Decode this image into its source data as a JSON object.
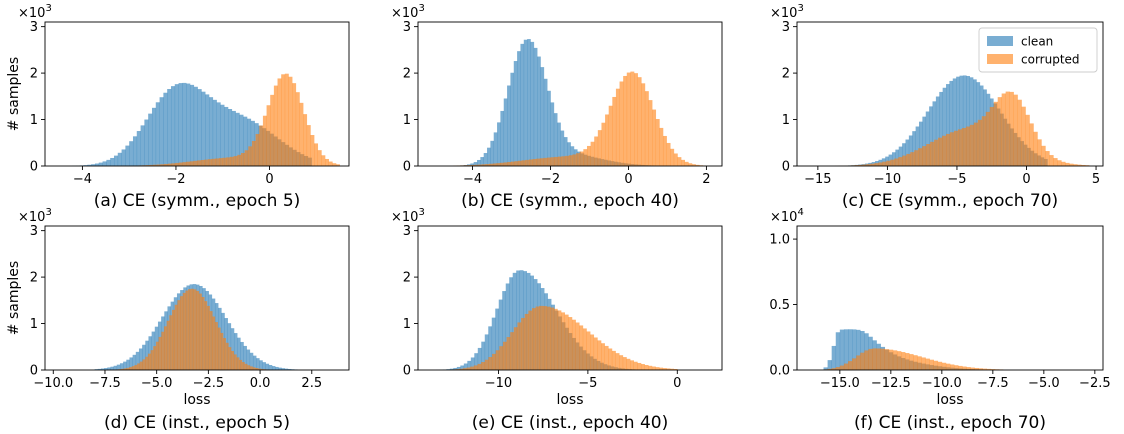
{
  "colors": {
    "clean": "#1f77b4",
    "corrupted": "#ff7f0e"
  },
  "chart_data": [
    {
      "type": "histogram",
      "caption": "(a) CE (symm., epoch 5)",
      "xlabel": "",
      "ylabel": "# samples",
      "y_multiplier": "×10^3",
      "xlim": [
        -4.8,
        1.7
      ],
      "ylim": [
        0,
        3.1
      ],
      "xticks": [
        -4,
        -2,
        0
      ],
      "xtick_labels": [
        "−4",
        "−2",
        "0"
      ],
      "yticks": [
        0,
        1,
        2,
        3
      ],
      "ytick_labels": [
        "0",
        "1",
        "2",
        "3"
      ],
      "series": [
        {
          "name": "clean",
          "dist": {
            "parts": [
              {
                "type": "gauss",
                "c": -2.0,
                "w": 0.65,
                "h": 1.55
              },
              {
                "type": "gauss",
                "c": -0.6,
                "w": 0.8,
                "h": 0.95
              }
            ]
          },
          "range": [
            -4.3,
            0.9
          ]
        },
        {
          "name": "corrupted",
          "dist": {
            "parts": [
              {
                "type": "gauss",
                "c": 0.35,
                "w": 0.38,
                "h": 1.9
              },
              {
                "type": "gauss",
                "c": -0.7,
                "w": 0.9,
                "h": 0.18
              }
            ]
          },
          "range": [
            -3.5,
            1.5
          ]
        }
      ],
      "nbins": 64
    },
    {
      "type": "histogram",
      "caption": "(b) CE (symm., epoch 40)",
      "xlabel": "",
      "ylabel": "",
      "y_multiplier": "×10^3",
      "xlim": [
        -5.4,
        2.4
      ],
      "ylim": [
        0,
        3.1
      ],
      "xticks": [
        -4,
        -2,
        0,
        2
      ],
      "xtick_labels": [
        "−4",
        "−2",
        "0",
        "2"
      ],
      "yticks": [
        0,
        1,
        2,
        3
      ],
      "ytick_labels": [
        "0",
        "1",
        "2",
        "3"
      ],
      "series": [
        {
          "name": "clean",
          "dist": {
            "parts": [
              {
                "type": "gauss",
                "c": -2.6,
                "w": 0.5,
                "h": 2.6
              },
              {
                "type": "gauss",
                "c": -1.6,
                "w": 0.9,
                "h": 0.25
              }
            ]
          },
          "range": [
            -5.0,
            1.0
          ]
        },
        {
          "name": "corrupted",
          "dist": {
            "parts": [
              {
                "type": "gauss",
                "c": 0.1,
                "w": 0.55,
                "h": 1.95
              },
              {
                "type": "gauss",
                "c": -1.5,
                "w": 1.2,
                "h": 0.2
              }
            ]
          },
          "range": [
            -4.5,
            2.0
          ]
        }
      ],
      "nbins": 70
    },
    {
      "type": "histogram",
      "caption": "(c) CE (symm., epoch 70)",
      "xlabel": "",
      "ylabel": "",
      "y_multiplier": "×10^3",
      "xlim": [
        -16.5,
        5.5
      ],
      "ylim": [
        0,
        3.1
      ],
      "xticks": [
        -15,
        -10,
        -5,
        0,
        5
      ],
      "xtick_labels": [
        "−15",
        "−10",
        "−5",
        "0",
        "5"
      ],
      "yticks": [
        0,
        1,
        2,
        3
      ],
      "ytick_labels": [
        "0",
        "1",
        "2",
        "3"
      ],
      "series": [
        {
          "name": "clean",
          "dist": {
            "parts": [
              {
                "type": "gauss",
                "c": -4.5,
                "w": 2.6,
                "h": 1.95
              }
            ]
          },
          "range": [
            -15.5,
            1.5
          ]
        },
        {
          "name": "corrupted",
          "dist": {
            "parts": [
              {
                "type": "gauss",
                "c": -1.0,
                "w": 1.3,
                "h": 1.1
              },
              {
                "type": "gauss",
                "c": -4.0,
                "w": 3.0,
                "h": 0.8
              }
            ]
          },
          "range": [
            -15.5,
            4.5
          ]
        }
      ],
      "nbins": 70,
      "legend": {
        "position": "upper right",
        "entries": [
          "clean",
          "corrupted"
        ]
      }
    },
    {
      "type": "histogram",
      "caption": "(d) CE (inst., epoch 5)",
      "xlabel": "loss",
      "ylabel": "# samples",
      "y_multiplier": "×10^3",
      "xlim": [
        -10.4,
        4.3
      ],
      "ylim": [
        0,
        3.1
      ],
      "xticks": [
        -10.0,
        -7.5,
        -5.0,
        -2.5,
        0.0,
        2.5
      ],
      "xtick_labels": [
        "−10.0",
        "−7.5",
        "−5.0",
        "−2.5",
        "0.0",
        "2.5"
      ],
      "yticks": [
        0,
        1,
        2,
        3
      ],
      "ytick_labels": [
        "0",
        "1",
        "2",
        "3"
      ],
      "series": [
        {
          "name": "clean",
          "dist": {
            "parts": [
              {
                "type": "gauss",
                "c": -3.2,
                "w": 1.55,
                "h": 1.85
              }
            ]
          },
          "range": [
            -8.0,
            1.8
          ]
        },
        {
          "name": "corrupted",
          "dist": {
            "parts": [
              {
                "type": "gauss",
                "c": -3.3,
                "w": 1.15,
                "h": 1.75
              }
            ]
          },
          "range": [
            -7.5,
            0.8
          ]
        }
      ],
      "nbins": 64
    },
    {
      "type": "histogram",
      "caption": "(e) CE (inst., epoch 40)",
      "xlabel": "loss",
      "ylabel": "",
      "y_multiplier": "×10^3",
      "xlim": [
        -14.5,
        2.5
      ],
      "ylim": [
        0,
        3.1
      ],
      "xticks": [
        -10,
        -5,
        0
      ],
      "xtick_labels": [
        "−10",
        "−5",
        "0"
      ],
      "yticks": [
        0,
        1,
        2,
        3
      ],
      "ytick_labels": [
        "0",
        "1",
        "2",
        "3"
      ],
      "series": [
        {
          "name": "clean",
          "dist": {
            "parts": [
              {
                "type": "skew",
                "c": -8.8,
                "wl": 1.3,
                "wr": 2.0,
                "h": 2.15
              }
            ]
          },
          "range": [
            -13.5,
            -1.0
          ]
        },
        {
          "name": "corrupted",
          "dist": {
            "parts": [
              {
                "type": "skew",
                "c": -7.6,
                "wl": 1.6,
                "wr": 2.6,
                "h": 1.38
              }
            ]
          },
          "range": [
            -13.0,
            0.0
          ]
        }
      ],
      "nbins": 64
    },
    {
      "type": "histogram",
      "caption": "(f) CE (inst., epoch 70)",
      "xlabel": "loss",
      "ylabel": "",
      "y_multiplier": "×10^4",
      "xlim": [
        -17.1,
        -2.1
      ],
      "ylim": [
        0,
        1.1
      ],
      "xticks": [
        -15.0,
        -12.5,
        -10.0,
        -7.5,
        -5.0,
        -2.5
      ],
      "xtick_labels": [
        "−15.0",
        "−12.5",
        "−10.0",
        "−7.5",
        "−5.0",
        "−2.5"
      ],
      "yticks": [
        0,
        0.5,
        1.0
      ],
      "ytick_labels": [
        "0.0",
        "0.5",
        "1.0"
      ],
      "series": [
        {
          "name": "clean",
          "dist": {
            "parts": [
              {
                "type": "skew",
                "c": -15.0,
                "wl": 0.3,
                "wr": 1.3,
                "h": 0.3
              },
              {
                "type": "skew",
                "c": -13.6,
                "wl": 0.6,
                "wr": 2.2,
                "h": 0.1
              }
            ]
          },
          "range": [
            -15.8,
            -3.0
          ]
        },
        {
          "name": "corrupted",
          "dist": {
            "parts": [
              {
                "type": "skew",
                "c": -13.3,
                "wl": 0.9,
                "wr": 2.3,
                "h": 0.165
              }
            ]
          },
          "range": [
            -15.8,
            -3.0
          ]
        }
      ],
      "nbins": 64
    }
  ]
}
